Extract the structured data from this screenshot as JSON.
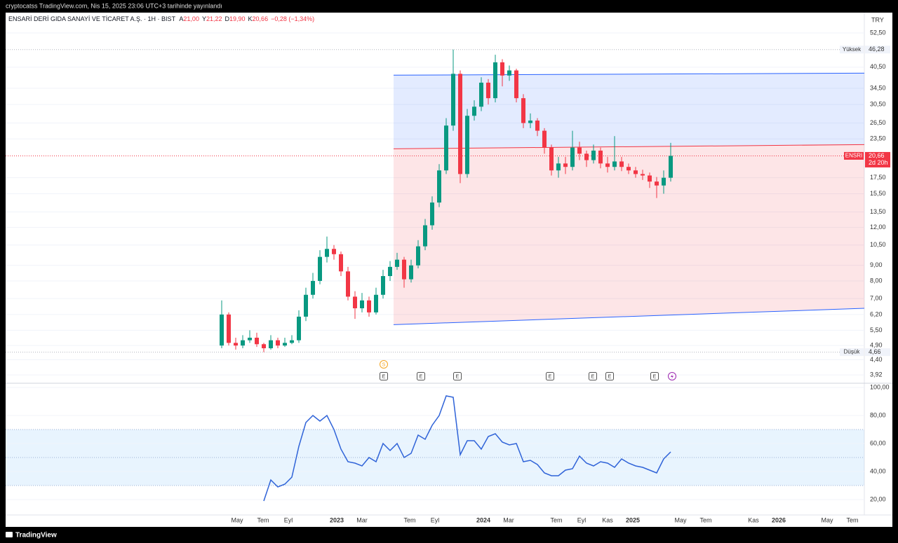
{
  "header": {
    "published": "cryptocatss TradingView.com, Nis 15, 2025 23:06 UTC+3 tarihinde yayınlandı",
    "symbol": "ENSARİ DERİ GIDA SANAYİ VE TİCARET A.Ş. · 1H · BIST",
    "ohlc": [
      {
        "key": "A",
        "value": "21,00"
      },
      {
        "key": "Y",
        "value": "21,22"
      },
      {
        "key": "D",
        "value": "19,90"
      },
      {
        "key": "K",
        "value": "20,66"
      }
    ],
    "change": "−0,28 (−1,34%)",
    "currency": "TRY"
  },
  "footer": "TradingView",
  "chart_data": [
    {
      "type": "candlestick",
      "log_scale": true,
      "grid": true,
      "up_color": "#089981",
      "down_color": "#f23645",
      "xlim": [
        -30.8,
        91.6
      ],
      "ylim": [
        3.72,
        60.6
      ],
      "yticks": [
        {
          "value": 52.5,
          "label": "52,50"
        },
        {
          "value": 40.5,
          "label": "40,50"
        },
        {
          "value": 34.5,
          "label": "34,50"
        },
        {
          "value": 30.5,
          "label": "30,50"
        },
        {
          "value": 26.5,
          "label": "26,50"
        },
        {
          "value": 23.5,
          "label": "23,50"
        },
        {
          "value": 17.5,
          "label": "17,50"
        },
        {
          "value": 15.5,
          "label": "15,50"
        },
        {
          "value": 13.5,
          "label": "13,50"
        },
        {
          "value": 12,
          "label": "12,00"
        },
        {
          "value": 10.5,
          "label": "10,50"
        },
        {
          "value": 9,
          "label": "9,00"
        },
        {
          "value": 8,
          "label": "8,00"
        },
        {
          "value": 7,
          "label": "7,00"
        },
        {
          "value": 6.2,
          "label": "6,20"
        },
        {
          "value": 5.5,
          "label": "5,50"
        },
        {
          "value": 4.9,
          "label": "4,90"
        },
        {
          "value": 4.4,
          "label": "4,40"
        },
        {
          "value": 3.92,
          "label": "3,92"
        }
      ],
      "x": [
        0,
        1,
        2,
        3,
        4,
        5,
        6,
        7,
        8,
        9,
        10,
        11,
        12,
        13,
        14,
        15,
        16,
        17,
        18,
        19,
        20,
        21,
        22,
        23,
        24,
        25,
        26,
        27,
        28,
        29,
        30,
        31,
        32,
        33,
        34,
        35,
        36,
        37,
        38,
        39,
        40,
        41,
        42,
        43,
        44,
        45,
        46,
        47,
        48,
        49,
        50,
        51,
        52,
        53,
        54,
        55,
        56,
        57,
        58,
        59,
        60,
        61,
        62,
        63,
        64
      ],
      "open": [
        4.9,
        6.2,
        5.0,
        4.9,
        5.1,
        5.2,
        4.95,
        4.8,
        5.1,
        4.9,
        5.0,
        5.1,
        6.1,
        7.2,
        8.0,
        9.6,
        10.2,
        9.8,
        8.6,
        7.1,
        6.5,
        6.9,
        6.3,
        7.2,
        8.3,
        8.9,
        9.4,
        8.1,
        9.0,
        10.4,
        12.2,
        14.5,
        18.5,
        26.0,
        38.5,
        18.0,
        28.0,
        30.0,
        36.0,
        32.0,
        42.0,
        38.0,
        39.5,
        32.0,
        26.5,
        27.0,
        25.0,
        22.0,
        18.5,
        19.5,
        19.0,
        22.0,
        21.0,
        20.0,
        21.5,
        19.5,
        19.0,
        19.8,
        19.0,
        18.5,
        18.0,
        17.8,
        17.0,
        16.5,
        17.5
      ],
      "high": [
        6.9,
        6.3,
        5.2,
        5.3,
        5.5,
        5.4,
        5.0,
        5.3,
        5.2,
        5.2,
        5.3,
        6.4,
        7.6,
        8.5,
        10.1,
        11.2,
        10.5,
        10.0,
        8.9,
        7.4,
        7.3,
        7.1,
        7.6,
        8.7,
        9.3,
        9.9,
        9.6,
        9.4,
        10.9,
        12.8,
        15.2,
        19.4,
        27.5,
        46.28,
        39.5,
        29.5,
        31.5,
        37.5,
        37.0,
        44.5,
        43.0,
        41.0,
        40.0,
        33.0,
        28.5,
        27.5,
        25.5,
        22.5,
        20.5,
        20.5,
        25.0,
        23.0,
        21.5,
        22.5,
        22.0,
        20.5,
        24.0,
        20.5,
        19.5,
        19.0,
        18.6,
        18.2,
        17.6,
        18.5,
        22.8
      ],
      "low": [
        4.8,
        4.9,
        4.75,
        4.8,
        5.0,
        4.85,
        4.66,
        4.75,
        4.8,
        4.85,
        4.95,
        5.0,
        5.9,
        7.0,
        7.8,
        9.2,
        9.4,
        8.3,
        6.9,
        6.0,
        6.3,
        6.1,
        6.2,
        7.0,
        8.0,
        8.7,
        7.6,
        7.9,
        8.8,
        10.1,
        11.8,
        14.0,
        18.0,
        25.0,
        16.8,
        17.5,
        27.0,
        29.0,
        30.5,
        31.0,
        35.0,
        36.5,
        31.0,
        25.5,
        25.5,
        24.0,
        21.0,
        17.8,
        17.5,
        18.0,
        18.5,
        20.0,
        19.0,
        19.5,
        18.8,
        18.2,
        18.5,
        18.4,
        18.0,
        17.5,
        17.2,
        16.2,
        15.0,
        15.5,
        17.0
      ],
      "close": [
        6.2,
        5.0,
        4.9,
        5.1,
        5.2,
        4.95,
        4.8,
        5.1,
        4.9,
        5.0,
        5.1,
        6.1,
        7.2,
        8.0,
        9.6,
        10.2,
        9.8,
        8.6,
        7.1,
        6.5,
        6.9,
        6.3,
        7.2,
        8.3,
        8.9,
        9.4,
        8.1,
        9.0,
        10.4,
        12.2,
        14.5,
        18.5,
        26.0,
        38.5,
        18.0,
        28.0,
        30.0,
        36.0,
        32.0,
        42.0,
        38.0,
        39.5,
        32.0,
        26.5,
        27.0,
        25.0,
        22.0,
        18.5,
        19.5,
        19.0,
        22.0,
        21.0,
        20.0,
        21.5,
        19.5,
        19.0,
        19.8,
        19.0,
        18.5,
        18.0,
        17.8,
        17.0,
        16.5,
        17.5,
        20.66
      ],
      "channel": {
        "x": [
          24.5,
          91.6
        ],
        "upper": [
          38.1,
          38.7
        ],
        "middle": [
          21.8,
          22.5
        ],
        "lower": [
          5.74,
          6.5
        ]
      },
      "price_lines": [
        {
          "label": "Yüksek",
          "value": 46.28,
          "value_label": "46,28",
          "color": "#b2b5be"
        },
        {
          "label": "Düşük",
          "value": 4.66,
          "value_label": "4,66",
          "color": "#b2b5be"
        },
        {
          "label": "ENSRI",
          "value": 20.66,
          "value_label": "20,66",
          "countdown": "2d 20h",
          "color": "#f23645"
        }
      ],
      "events": [
        {
          "x": 23.1,
          "label": "S",
          "row": 0
        },
        {
          "x": 23.1,
          "label": "E",
          "row": 1
        },
        {
          "x": 28.4,
          "label": "E",
          "row": 1
        },
        {
          "x": 33.6,
          "label": "E",
          "row": 1
        },
        {
          "x": 46.8,
          "label": "E",
          "row": 1
        },
        {
          "x": 52.9,
          "label": "E",
          "row": 1
        },
        {
          "x": 55.3,
          "label": "E",
          "row": 1
        },
        {
          "x": 61.7,
          "label": "E",
          "row": 1
        }
      ]
    },
    {
      "type": "line",
      "grid": true,
      "color": "#2f63d8",
      "xlim": [
        -30.8,
        91.6
      ],
      "ylim": [
        9,
        102.5
      ],
      "yticks": [
        {
          "value": 100,
          "label": "100,00"
        },
        {
          "value": 80,
          "label": "80,00"
        },
        {
          "value": 60,
          "label": "60,00"
        },
        {
          "value": 40,
          "label": "40,00"
        },
        {
          "value": 20,
          "label": "20,00"
        }
      ],
      "band": [
        30,
        70
      ],
      "levels": [
        70,
        50,
        30
      ],
      "xticks": [
        {
          "value": 2.2,
          "label": "May"
        },
        {
          "value": 5.9,
          "label": "Tem"
        },
        {
          "value": 9.5,
          "label": "Eyl"
        },
        {
          "value": 16.4,
          "label": "2023"
        },
        {
          "value": 20,
          "label": "Mar"
        },
        {
          "value": 26.8,
          "label": "Tem"
        },
        {
          "value": 30.4,
          "label": "Eyl"
        },
        {
          "value": 37.3,
          "label": "2024"
        },
        {
          "value": 40.9,
          "label": "Mar"
        },
        {
          "value": 47.7,
          "label": "Tem"
        },
        {
          "value": 51.3,
          "label": "Eyl"
        },
        {
          "value": 55,
          "label": "Kas"
        },
        {
          "value": 58.6,
          "label": "2025"
        },
        {
          "value": 65.4,
          "label": "May"
        },
        {
          "value": 69,
          "label": "Tem"
        },
        {
          "value": 75.8,
          "label": "Kas"
        },
        {
          "value": 79.4,
          "label": "2026"
        },
        {
          "value": 86.3,
          "label": "May"
        },
        {
          "value": 89.9,
          "label": "Tem"
        }
      ],
      "x": [
        0,
        1,
        2,
        3,
        4,
        5,
        6,
        7,
        8,
        9,
        10,
        11,
        12,
        13,
        14,
        15,
        16,
        17,
        18,
        19,
        20,
        21,
        22,
        23,
        24,
        25,
        26,
        27,
        28,
        29,
        30,
        31,
        32,
        33,
        34,
        35,
        36,
        37,
        38,
        39,
        40,
        41,
        42,
        43,
        44,
        45,
        46,
        47,
        48,
        49,
        50,
        51,
        52,
        53,
        54,
        55,
        56,
        57,
        58,
        59,
        60,
        61,
        62,
        63,
        64
      ],
      "values": [
        null,
        null,
        null,
        null,
        null,
        null,
        19,
        34,
        29,
        31,
        36,
        58,
        75,
        80,
        76,
        80,
        70,
        56,
        47,
        46,
        44,
        50,
        47,
        60,
        55,
        60,
        50,
        53,
        66,
        63,
        73,
        80,
        94,
        93,
        52,
        62,
        62,
        56,
        65,
        67,
        61,
        59,
        60,
        47,
        48,
        45,
        39,
        37,
        37,
        41,
        42,
        51,
        46,
        44,
        47,
        46,
        43,
        49,
        46,
        44,
        43,
        41,
        39,
        49,
        54
      ]
    }
  ]
}
